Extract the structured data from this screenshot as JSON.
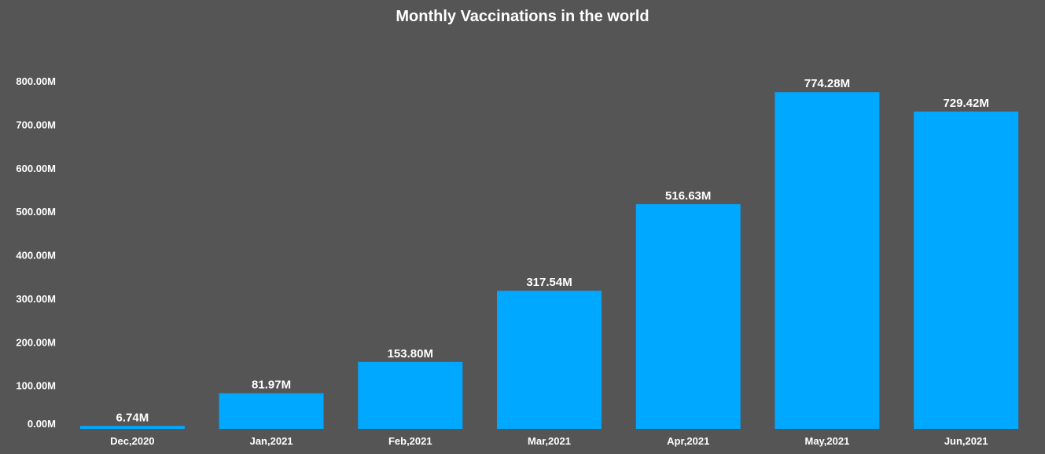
{
  "chart_data": {
    "type": "bar",
    "title": "Monthly Vaccinations in the world",
    "xlabel": "",
    "ylabel": "",
    "categories": [
      "Dec,2020",
      "Jan,2021",
      "Feb,2021",
      "Mar,2021",
      "Apr,2021",
      "May,2021",
      "Jun,2021"
    ],
    "values": [
      6.74,
      81.97,
      153.8,
      317.54,
      516.63,
      774.28,
      729.42
    ],
    "data_labels": [
      "6.74M",
      "81.97M",
      "153.80M",
      "317.54M",
      "516.63M",
      "774.28M",
      "729.42M"
    ],
    "unit": "M",
    "ylim": [
      0,
      800
    ],
    "yticks": [
      0,
      100,
      200,
      300,
      400,
      500,
      600,
      700,
      800
    ],
    "ytick_labels": [
      "0.00M",
      "100.00M",
      "200.00M",
      "300.00M",
      "400.00M",
      "500.00M",
      "600.00M",
      "700.00M",
      "800.00M"
    ],
    "grid": false,
    "legend": "none",
    "colors": {
      "bar": "#00A8FF",
      "background": "#555555",
      "text": "#FFFFFF"
    }
  }
}
